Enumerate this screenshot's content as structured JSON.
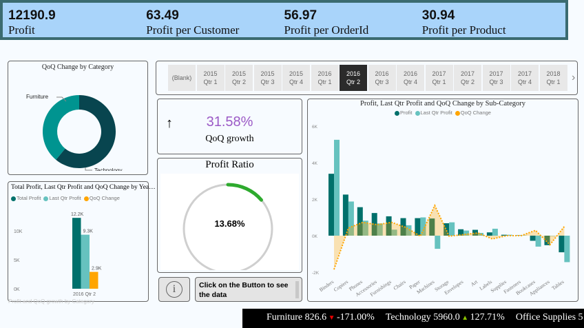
{
  "kpis": [
    {
      "value": "12190.9",
      "label": "Profit"
    },
    {
      "value": "63.49",
      "label": "Profit per Customer"
    },
    {
      "value": "56.97",
      "label": "Profit per OrderId"
    },
    {
      "value": "30.94",
      "label": "Profit per Product"
    }
  ],
  "slicer": {
    "items": [
      "(Blank)",
      "2015\nQtr 1",
      "2015\nQtr 2",
      "2015\nQtr 3",
      "2015\nQtr 4",
      "2016\nQtr 1",
      "2016\nQtr 2",
      "2016\nQtr 3",
      "2016\nQtr 4",
      "2017\nQtr 1",
      "2017\nQtr 2",
      "2017\nQtr 3",
      "2017\nQtr 4",
      "2018\nQtr 1"
    ],
    "selected": "2016\nQtr 2",
    "next_icon": "chevron-right-icon"
  },
  "growth": {
    "icon": "arrow-up-icon",
    "value": "31.58%",
    "label": "QoQ growth",
    "color": "#9b59c6"
  },
  "profit_ratio": {
    "title": "Profit Ratio",
    "value": "13.68%",
    "fraction": 0.1368,
    "color": "#2eaa2e"
  },
  "info": {
    "icon": "info-icon",
    "text": "Click on the Button to see the data"
  },
  "watermark": "Profit and QoQ growth by Category",
  "ticker": [
    {
      "name": "Furniture",
      "value": "826.6",
      "dir": "down",
      "change": "-171.00%"
    },
    {
      "name": "Technology",
      "value": "5960.0",
      "dir": "up",
      "change": "127.71%"
    },
    {
      "name": "Office Supplies",
      "value": "5",
      "dir": "",
      "change": ""
    }
  ],
  "colors": {
    "profit": "#00706b",
    "last": "#66c2bf",
    "qoq": "#ffa500",
    "furniture": "#009490",
    "technology": "#08454f"
  },
  "chart_data": [
    {
      "type": "pie",
      "title": "QoQ Change by Category",
      "categories": [
        "Furniture",
        "Technology"
      ],
      "values": [
        39,
        61
      ]
    },
    {
      "type": "bar",
      "title": "Total Profit, Last Qtr Profit and QoQ Change by Yea…",
      "categories": [
        "2016 Qtr 2"
      ],
      "series": [
        {
          "name": "Total Profit",
          "values": [
            12.2
          ],
          "label": "12.2K"
        },
        {
          "name": "Last Qtr Profit",
          "values": [
            9.3
          ],
          "label": "9.3K"
        },
        {
          "name": "QoQ Change",
          "values": [
            2.9
          ],
          "label": "2.9K"
        }
      ],
      "yticks": [
        "0K",
        "5K",
        "10K"
      ],
      "ylim": [
        0,
        14
      ]
    },
    {
      "type": "bar",
      "title": "Profit, Last Qtr Profit and QoQ Change by Sub-Category",
      "categories": [
        "Binders",
        "Copiers",
        "Phones",
        "Accessories",
        "Furnishings",
        "Chairs",
        "Paper",
        "Machines",
        "Storage",
        "Envelopes",
        "Art",
        "Labels",
        "Supplies",
        "Fasteners",
        "Bookcases",
        "Appliances",
        "Tables"
      ],
      "series": [
        {
          "name": "Profit",
          "values": [
            3.39,
            2.25,
            1.56,
            1.24,
            1.06,
            0.96,
            0.96,
            0.94,
            0.68,
            0.35,
            0.32,
            0.18,
            0.05,
            0.02,
            -0.28,
            -0.52,
            -0.91
          ]
        },
        {
          "name": "Last Qtr Profit",
          "values": [
            5.25,
            1.87,
            0.82,
            0.67,
            0.33,
            0.57,
            1.0,
            -0.72,
            0.73,
            0.28,
            0.15,
            0.38,
            0.05,
            0.02,
            -0.6,
            -0.02,
            -1.45
          ]
        },
        {
          "name": "QoQ Change",
          "type": "area",
          "values": [
            -1.85,
            0.42,
            0.73,
            0.6,
            0.73,
            0.45,
            -0.03,
            1.65,
            -0.03,
            0.06,
            0.15,
            -0.18,
            0.0,
            0.0,
            0.29,
            -0.5,
            0.5
          ]
        }
      ],
      "yticks": [
        "-2K",
        "0K",
        "2K",
        "4K",
        "6K"
      ],
      "ylim": [
        -2,
        6
      ]
    }
  ]
}
